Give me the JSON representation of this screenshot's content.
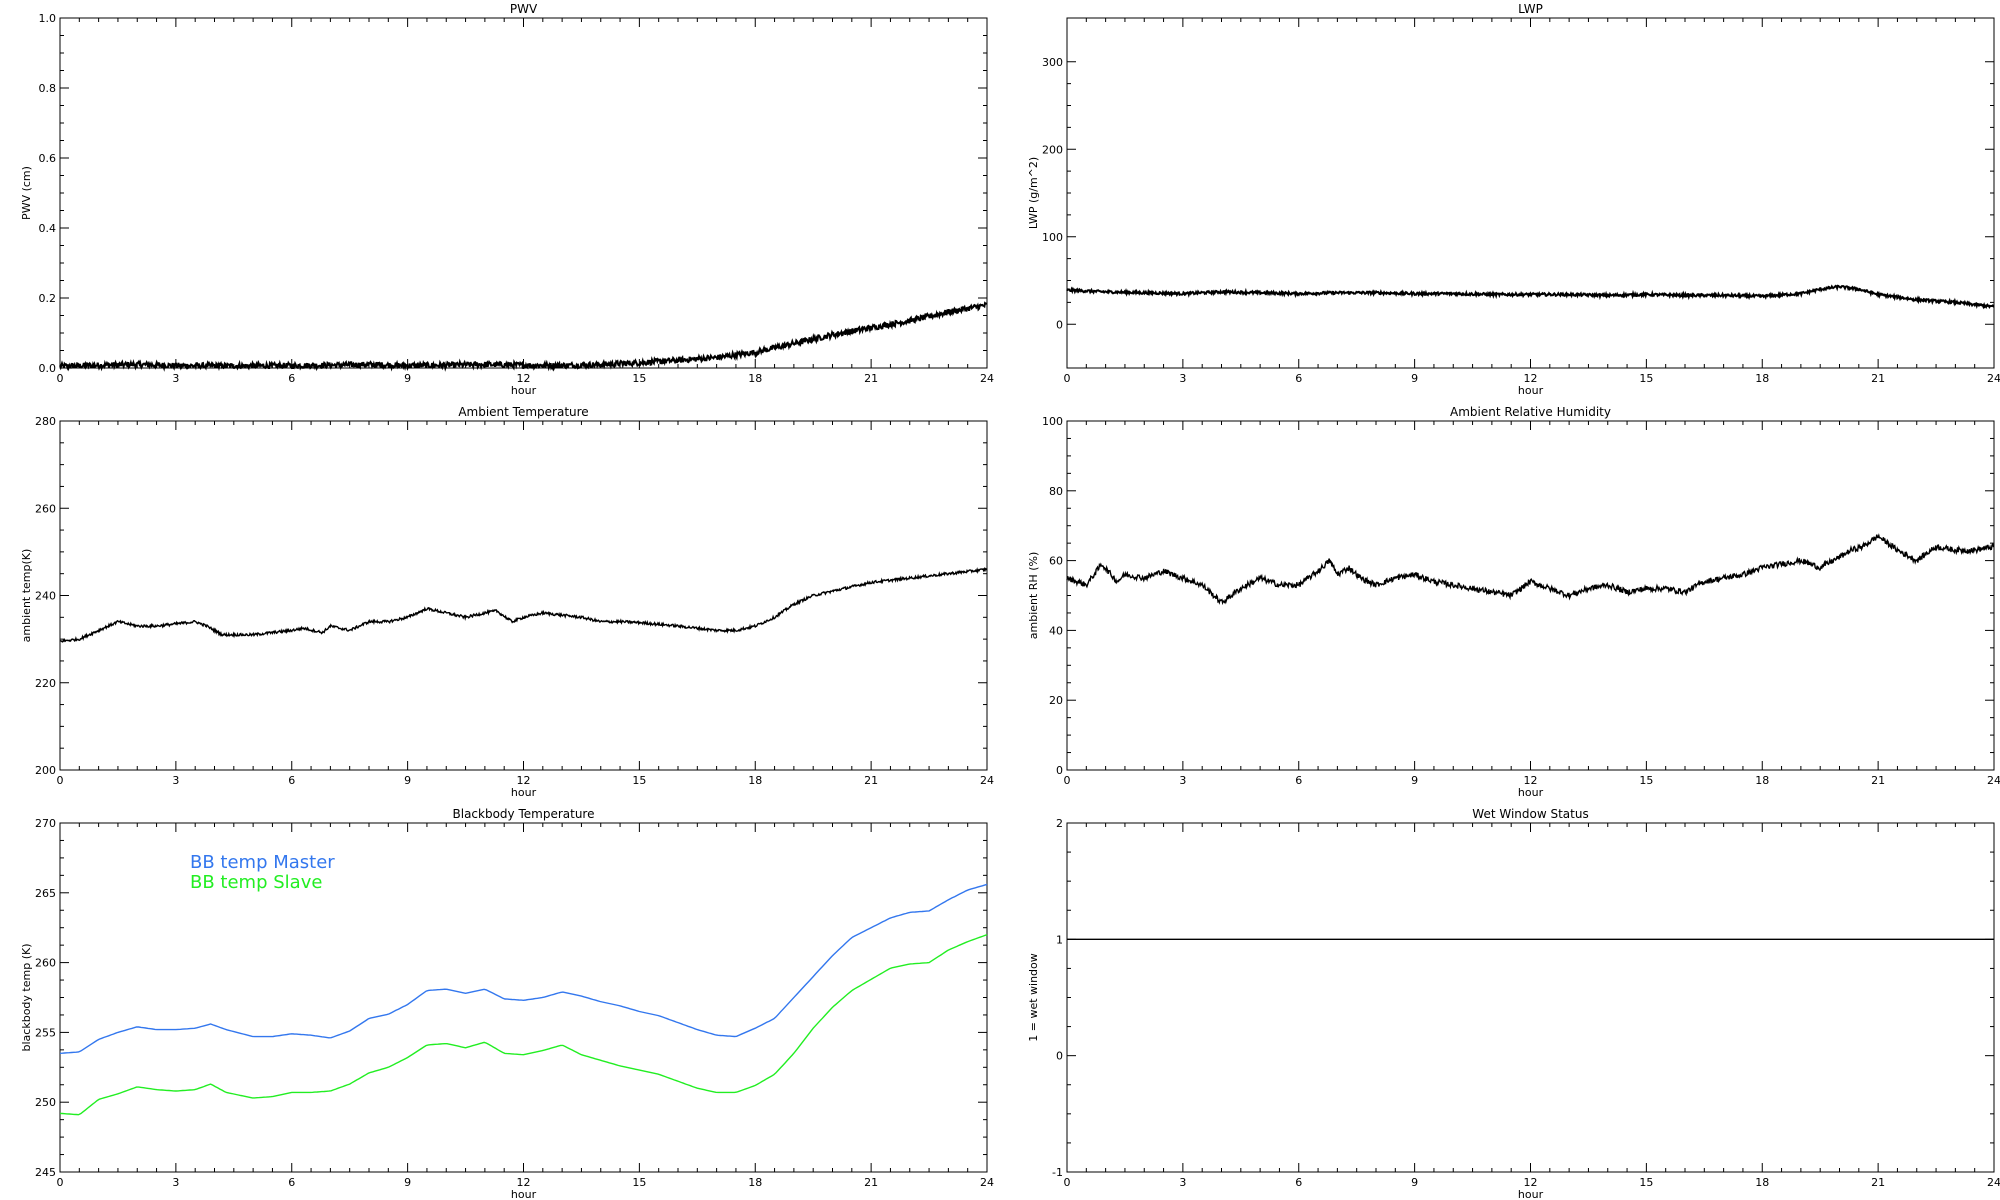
{
  "chart_data": [
    {
      "type": "line",
      "title": "PWV",
      "xlabel": "hour",
      "ylabel": "PWV (cm)",
      "xlim": [
        0,
        24
      ],
      "ylim": [
        0,
        1.0
      ],
      "xticks": [
        0,
        3,
        6,
        9,
        12,
        15,
        18,
        21,
        24
      ],
      "yticks": [
        0.0,
        0.2,
        0.4,
        0.6,
        0.8,
        1.0
      ],
      "ytick_labels": [
        "0.0",
        "0.2",
        "0.4",
        "0.6",
        "0.8",
        "1.0"
      ],
      "noise": 0.008,
      "series": [
        {
          "color": "#000000",
          "x": [
            0,
            1,
            2,
            3,
            4,
            5,
            6,
            7,
            8,
            9,
            10,
            11,
            12,
            13,
            14,
            15,
            16,
            17,
            18,
            19,
            20,
            21,
            22,
            23,
            24
          ],
          "y": [
            0.005,
            0.008,
            0.01,
            0.007,
            0.006,
            0.006,
            0.007,
            0.008,
            0.01,
            0.007,
            0.008,
            0.01,
            0.008,
            0.007,
            0.01,
            0.015,
            0.022,
            0.03,
            0.045,
            0.07,
            0.095,
            0.115,
            0.135,
            0.16,
            0.18
          ]
        }
      ]
    },
    {
      "type": "line",
      "title": "LWP",
      "xlabel": "hour",
      "ylabel": "LWP (g/m^2)",
      "xlim": [
        0,
        24
      ],
      "ylim": [
        -50,
        350
      ],
      "xticks": [
        0,
        3,
        6,
        9,
        12,
        15,
        18,
        21,
        24
      ],
      "yticks": [
        0,
        100,
        200,
        300
      ],
      "ytick_labels": [
        "0",
        "100",
        "200",
        "300"
      ],
      "noise": 1.5,
      "series": [
        {
          "color": "#000000",
          "x": [
            0,
            1,
            2,
            3,
            4,
            5,
            6,
            7,
            8,
            9,
            10,
            11,
            12,
            13,
            14,
            15,
            16,
            17,
            18,
            19,
            19.5,
            20,
            20.5,
            21,
            22,
            23,
            24
          ],
          "y": [
            39,
            37,
            36,
            35,
            37,
            36,
            35,
            36,
            36,
            35,
            35,
            34,
            34,
            34,
            33,
            34,
            33,
            33,
            32,
            35,
            40,
            43,
            40,
            34,
            28,
            25,
            20
          ]
        }
      ]
    },
    {
      "type": "line",
      "title": "Ambient Temperature",
      "xlabel": "hour",
      "ylabel": "ambient temp(K)",
      "xlim": [
        0,
        24
      ],
      "ylim": [
        200,
        280
      ],
      "xticks": [
        0,
        3,
        6,
        9,
        12,
        15,
        18,
        21,
        24
      ],
      "yticks": [
        200,
        220,
        240,
        260,
        280
      ],
      "ytick_labels": [
        "200",
        "220",
        "240",
        "260",
        "280"
      ],
      "noise": 0.3,
      "series": [
        {
          "color": "#000000",
          "x": [
            0,
            0.5,
            1,
            1.5,
            2,
            2.5,
            3,
            3.5,
            3.8,
            4.2,
            4.5,
            5,
            6,
            6.3,
            6.8,
            7,
            7.5,
            8,
            8.5,
            9,
            9.5,
            10,
            10.5,
            11,
            11.3,
            11.7,
            12,
            12.5,
            13,
            13.5,
            14,
            14.5,
            15,
            16,
            17,
            17.5,
            18,
            18.5,
            19,
            19.5,
            20,
            20.5,
            21,
            22,
            23,
            24
          ],
          "y": [
            229.5,
            230,
            232,
            234,
            233,
            233,
            233.5,
            234,
            233,
            231,
            231,
            231,
            232,
            232.5,
            231.5,
            233,
            232,
            234,
            234,
            235,
            237,
            236,
            235,
            236,
            236.5,
            234,
            235,
            236,
            235.5,
            235,
            234,
            234,
            233.8,
            233,
            232,
            232,
            233,
            235,
            238,
            240,
            241,
            242,
            243,
            244,
            245,
            246
          ]
        }
      ]
    },
    {
      "type": "line",
      "title": "Ambient Relative Humidity",
      "xlabel": "hour",
      "ylabel": "ambient RH (%)",
      "xlim": [
        0,
        24
      ],
      "ylim": [
        0,
        100
      ],
      "xticks": [
        0,
        3,
        6,
        9,
        12,
        15,
        18,
        21,
        24
      ],
      "yticks": [
        0,
        20,
        40,
        60,
        80,
        100
      ],
      "ytick_labels": [
        "0",
        "20",
        "40",
        "60",
        "80",
        "100"
      ],
      "noise": 0.8,
      "series": [
        {
          "color": "#000000",
          "x": [
            0,
            0.5,
            0.9,
            1.3,
            1.5,
            2,
            2.5,
            3,
            3.5,
            3.8,
            4,
            4.5,
            5,
            5.5,
            6,
            6.5,
            6.8,
            7,
            7.3,
            7.6,
            8,
            8.5,
            9,
            9.5,
            10,
            10.5,
            11,
            11.5,
            12,
            12.5,
            13,
            13.5,
            14,
            14.5,
            15,
            15.5,
            16,
            16.5,
            17,
            17.5,
            18,
            18.5,
            19,
            19.5,
            20,
            20.3,
            20.6,
            21,
            21.5,
            22,
            22.5,
            23,
            23.5,
            24
          ],
          "y": [
            55,
            53,
            59,
            54,
            56,
            55,
            57,
            55,
            53,
            50,
            48,
            52,
            55,
            53,
            53,
            57,
            60,
            56,
            58,
            55,
            53,
            55,
            56,
            54,
            53,
            52,
            51,
            50,
            54,
            52,
            50,
            52,
            53,
            51,
            52,
            52,
            51,
            54,
            55,
            56,
            58,
            59,
            60,
            58,
            61,
            63,
            64,
            67,
            63,
            60,
            64,
            63,
            63,
            64
          ]
        }
      ]
    },
    {
      "type": "line",
      "title": "Blackbody Temperature",
      "xlabel": "hour",
      "ylabel": "blackbody temp (K)",
      "xlim": [
        0,
        24
      ],
      "ylim": [
        245,
        270
      ],
      "xticks": [
        0,
        3,
        6,
        9,
        12,
        15,
        18,
        21,
        24
      ],
      "yticks": [
        245,
        250,
        255,
        260,
        265,
        270
      ],
      "ytick_labels": [
        "245",
        "250",
        "255",
        "260",
        "265",
        "270"
      ],
      "noise": 0,
      "legend": [
        "BB temp Master",
        "BB temp Slave"
      ],
      "series": [
        {
          "name": "BB temp Master",
          "color": "#3377ee",
          "x": [
            0,
            0.5,
            1,
            1.5,
            2,
            2.5,
            3,
            3.5,
            3.9,
            4.3,
            5,
            5.5,
            6,
            6.5,
            7,
            7.5,
            8,
            8.5,
            9,
            9.5,
            10,
            10.5,
            11,
            11.5,
            12,
            12.5,
            13,
            13.5,
            14,
            14.5,
            15,
            15.5,
            16,
            16.5,
            17,
            17.5,
            18,
            18.5,
            19,
            19.5,
            20,
            20.5,
            21,
            21.5,
            22,
            22.5,
            23,
            23.5,
            24
          ],
          "y": [
            253.5,
            253.6,
            254.5,
            255,
            255.4,
            255.2,
            255.2,
            255.3,
            255.6,
            255.2,
            254.7,
            254.7,
            254.9,
            254.8,
            254.6,
            255.1,
            256,
            256.3,
            257,
            258,
            258.1,
            257.8,
            258.1,
            257.4,
            257.3,
            257.5,
            257.9,
            257.6,
            257.2,
            256.9,
            256.5,
            256.2,
            255.7,
            255.2,
            254.8,
            254.7,
            255.3,
            256,
            257.5,
            259,
            260.5,
            261.8,
            262.5,
            263.2,
            263.6,
            263.7,
            264.5,
            265.2,
            265.6
          ]
        },
        {
          "name": "BB temp Slave",
          "color": "#22ee22",
          "x": [
            0,
            0.5,
            1,
            1.5,
            2,
            2.5,
            3,
            3.5,
            3.9,
            4.3,
            5,
            5.5,
            6,
            6.5,
            7,
            7.5,
            8,
            8.5,
            9,
            9.5,
            10,
            10.5,
            11,
            11.5,
            12,
            12.5,
            13,
            13.5,
            14,
            14.5,
            15,
            15.5,
            16,
            16.5,
            17,
            17.5,
            18,
            18.5,
            19,
            19.5,
            20,
            20.5,
            21,
            21.5,
            22,
            22.5,
            23,
            23.5,
            24
          ],
          "y": [
            249.2,
            249.1,
            250.2,
            250.6,
            251.1,
            250.9,
            250.8,
            250.9,
            251.3,
            250.7,
            250.3,
            250.4,
            250.7,
            250.7,
            250.8,
            251.3,
            252.1,
            252.5,
            253.2,
            254.1,
            254.2,
            253.9,
            254.3,
            253.5,
            253.4,
            253.7,
            254.1,
            253.4,
            253,
            252.6,
            252.3,
            252,
            251.5,
            251,
            250.7,
            250.7,
            251.2,
            252,
            253.5,
            255.3,
            256.8,
            258,
            258.8,
            259.6,
            259.9,
            260,
            260.9,
            261.5,
            262
          ]
        }
      ]
    },
    {
      "type": "line",
      "title": "Wet Window Status",
      "xlabel": "hour",
      "ylabel": "1 = wet window",
      "xlim": [
        0,
        24
      ],
      "ylim": [
        -1,
        2
      ],
      "xticks": [
        0,
        3,
        6,
        9,
        12,
        15,
        18,
        21,
        24
      ],
      "yticks": [
        -1,
        0,
        1,
        2
      ],
      "ytick_labels": [
        "-1",
        "0",
        "1",
        "2"
      ],
      "noise": 0,
      "series": [
        {
          "color": "#000000",
          "x": [
            0,
            24
          ],
          "y": [
            1,
            1
          ]
        }
      ]
    }
  ]
}
